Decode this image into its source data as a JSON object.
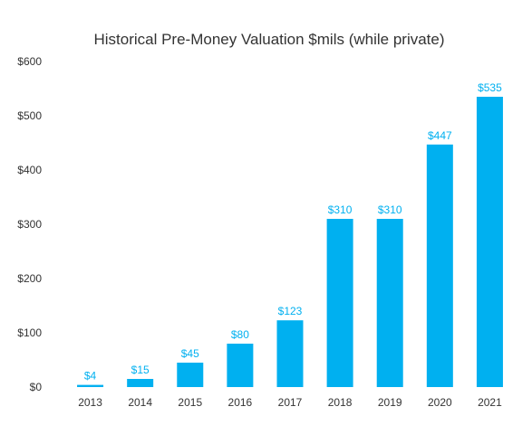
{
  "chart_data": {
    "type": "bar",
    "title": "Historical Pre-Money Valuation $mils (while private)",
    "xlabel": "",
    "ylabel": "",
    "categories": [
      "2013",
      "2014",
      "2015",
      "2016",
      "2017",
      "2018",
      "2019",
      "2020",
      "2021"
    ],
    "values": [
      4,
      15,
      45,
      80,
      123,
      310,
      310,
      447,
      535
    ],
    "data_labels": [
      "$4",
      "$15",
      "$45",
      "$80",
      "$123",
      "$310",
      "$310",
      "$447",
      "$535"
    ],
    "ylim": [
      0,
      600
    ],
    "yticks": [
      0,
      100,
      200,
      300,
      400,
      500,
      600
    ],
    "ytick_labels": [
      "$0",
      "$100",
      "$200",
      "$300",
      "$400",
      "$500",
      "$600"
    ],
    "grid": false,
    "legend": "none",
    "colors": {
      "bar": "#00B0F0",
      "label": "#00B0F0"
    }
  }
}
